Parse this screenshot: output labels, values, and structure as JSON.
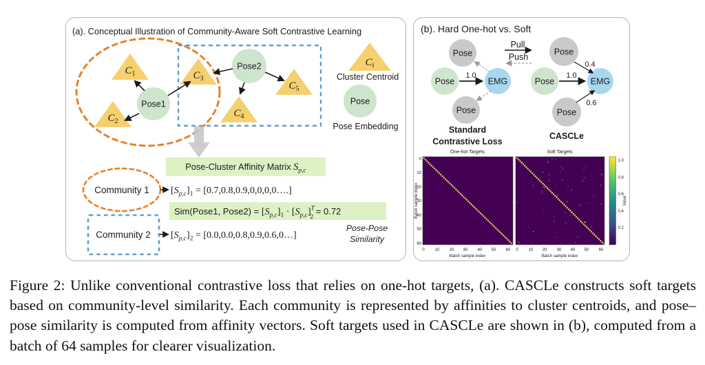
{
  "colors": {
    "centroid_triangle": "#f5d06f",
    "pose_green": "#cfe4cd",
    "pose_gray": "#c9c9c9",
    "emg_blue": "#a8d7f0",
    "highlight_green": "#ddf2c4",
    "community1_orange": "#e8802a",
    "community2_blue": "#5f9fcd",
    "heatmap_background": "#440154",
    "heatmap_diagonal": "#efe158",
    "panel_border": "#b0b0b0"
  },
  "panel_a": {
    "title": "(a). Conceptual Illustration of Community-Aware Soft Contrastive Learning",
    "pose1": "Pose1",
    "pose2": "Pose2",
    "centroids": [
      {
        "base": "C",
        "sub": "1"
      },
      {
        "base": "C",
        "sub": "2"
      },
      {
        "base": "C",
        "sub": "3"
      },
      {
        "base": "C",
        "sub": "4"
      },
      {
        "base": "C",
        "sub": "5"
      }
    ],
    "legend": {
      "centroid": {
        "base": "C",
        "sub": "i"
      },
      "centroid_caption": "Cluster Centroid",
      "pose": "Pose",
      "pose_caption": "Pose Embedding"
    },
    "affinity_title": {
      "prefix": "Pose-Cluster Affinity Matrix ",
      "s": "S",
      "sub": "p,c"
    },
    "community1": {
      "label": "Community 1",
      "row": {
        "open": "[",
        "s": "S",
        "sub": "p,c",
        "close": "]",
        "idx": "1",
        "rest": " = [0.7,0.8,0.9,0,0,0,0….]"
      }
    },
    "sim": {
      "prefix": "Sim(Pose1, Pose2) =  ",
      "t1": {
        "open": "[",
        "s": "S",
        "sub": "p,c",
        "close": "]",
        "idx": "1"
      },
      "dot": " · ",
      "t2": {
        "open": "[",
        "s": "S",
        "sub": "p,c",
        "close": "]",
        "sup": "T",
        "idx": "2"
      },
      "result": " = 0.72"
    },
    "community2": {
      "label": "Community 2",
      "row": {
        "open": "[",
        "s": "S",
        "sub": "p,c",
        "close": "]",
        "idx": "2",
        "rest": " = [0.0,0.0,0.8,0.9,0.6,0…]"
      }
    },
    "similarity_caption_line1": "Pose-Pose",
    "similarity_caption_line2": "Similarity"
  },
  "panel_b": {
    "title": "(b). Hard One-hot vs. Soft",
    "pull": "Pull",
    "push": "Push",
    "standard": {
      "top": "Pose",
      "anchor": "Pose",
      "emg": "EMG",
      "bottom": "Pose",
      "weight": "1.0",
      "caption_line1": "Standard",
      "caption_line2": "Contrastive Loss"
    },
    "cascle": {
      "top": "Pose",
      "anchor": "Pose",
      "emg": "EMG",
      "bottom": "Pose",
      "weight_anchor": "1.0",
      "weight_top": "0.4",
      "weight_bottom": "0.6",
      "caption": "CASCLe"
    }
  },
  "chart_data": [
    {
      "type": "heatmap",
      "title": "One-hot Targets",
      "xlabel": "Batch sample index",
      "ylabel": "Batch sample index",
      "n": 64,
      "x_ticks": [
        0,
        10,
        20,
        30,
        40,
        50,
        60
      ],
      "y_ticks": [
        0,
        10,
        20,
        30,
        40,
        50,
        60
      ],
      "values_description": "64×64 identity matrix: diagonal = 1.0, all off-diagonal = 0",
      "colormap": "viridis"
    },
    {
      "type": "heatmap",
      "title": "Soft Targets",
      "xlabel": "Batch sample index",
      "ylabel": "",
      "n": 64,
      "x_ticks": [
        0,
        10,
        20,
        30,
        40,
        50,
        60
      ],
      "values_description": "64×64 soft-target matrix: diagonal = 1.0 plus sparse off-diagonal community similarities (≈0.1–0.6)",
      "colormap": "viridis",
      "colorbar": {
        "label": "Value",
        "ticks": [
          "1.0",
          "0.8",
          "0.6",
          "0.4",
          "0.2"
        ]
      }
    }
  ],
  "caption": "Figure 2: Unlike conventional contrastive loss that relies on one-hot targets, (a). CASCLe constructs soft targets based on community-level similarity. Each community is represented by affinities to cluster centroids, and pose–pose similarity is computed from affinity vectors. Soft targets used in CASCLe are shown in (b), computed from a batch of 64 samples for clearer visualization."
}
